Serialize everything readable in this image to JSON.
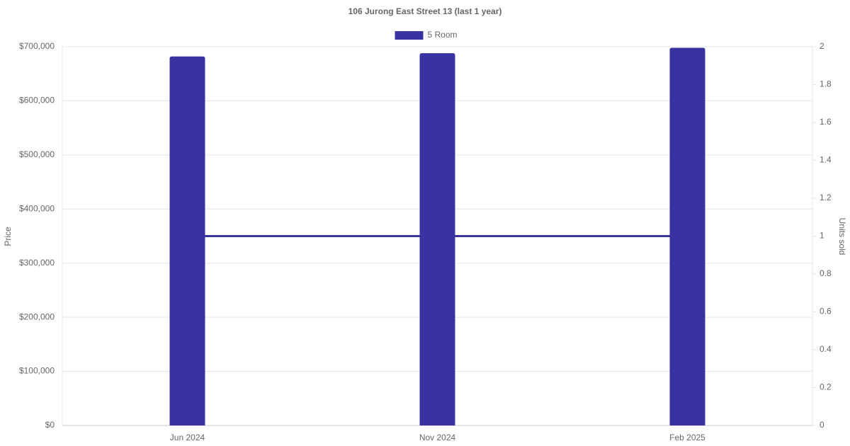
{
  "chart_data": {
    "type": "bar",
    "title": "106 Jurong East Street 13 (last 1 year)",
    "categories": [
      "Jun 2024",
      "Nov 2024",
      "Feb 2025"
    ],
    "series": [
      {
        "name": "5 Room",
        "type": "bar",
        "color": "#3833a0",
        "values": [
          682000,
          688000,
          698000
        ]
      },
      {
        "type": "line",
        "axis": "y2",
        "color": "#3833a0",
        "values": [
          1,
          1,
          1
        ]
      }
    ],
    "ylabel": "Price",
    "y2label": "Units sold",
    "ylim": [
      0,
      700000
    ],
    "yticks": [
      {
        "value": 0,
        "label": "$0"
      },
      {
        "value": 100000,
        "label": "$100,000"
      },
      {
        "value": 200000,
        "label": "$200,000"
      },
      {
        "value": 300000,
        "label": "$300,000"
      },
      {
        "value": 400000,
        "label": "$400,000"
      },
      {
        "value": 500000,
        "label": "$500,000"
      },
      {
        "value": 600000,
        "label": "$600,000"
      },
      {
        "value": 700000,
        "label": "$700,000"
      }
    ],
    "y2lim": [
      0,
      2
    ],
    "y2ticks": [
      0,
      0.2,
      0.4,
      0.6,
      0.8,
      1,
      1.2,
      1.4,
      1.6,
      1.8,
      2
    ],
    "grid": true,
    "legend": "top"
  }
}
